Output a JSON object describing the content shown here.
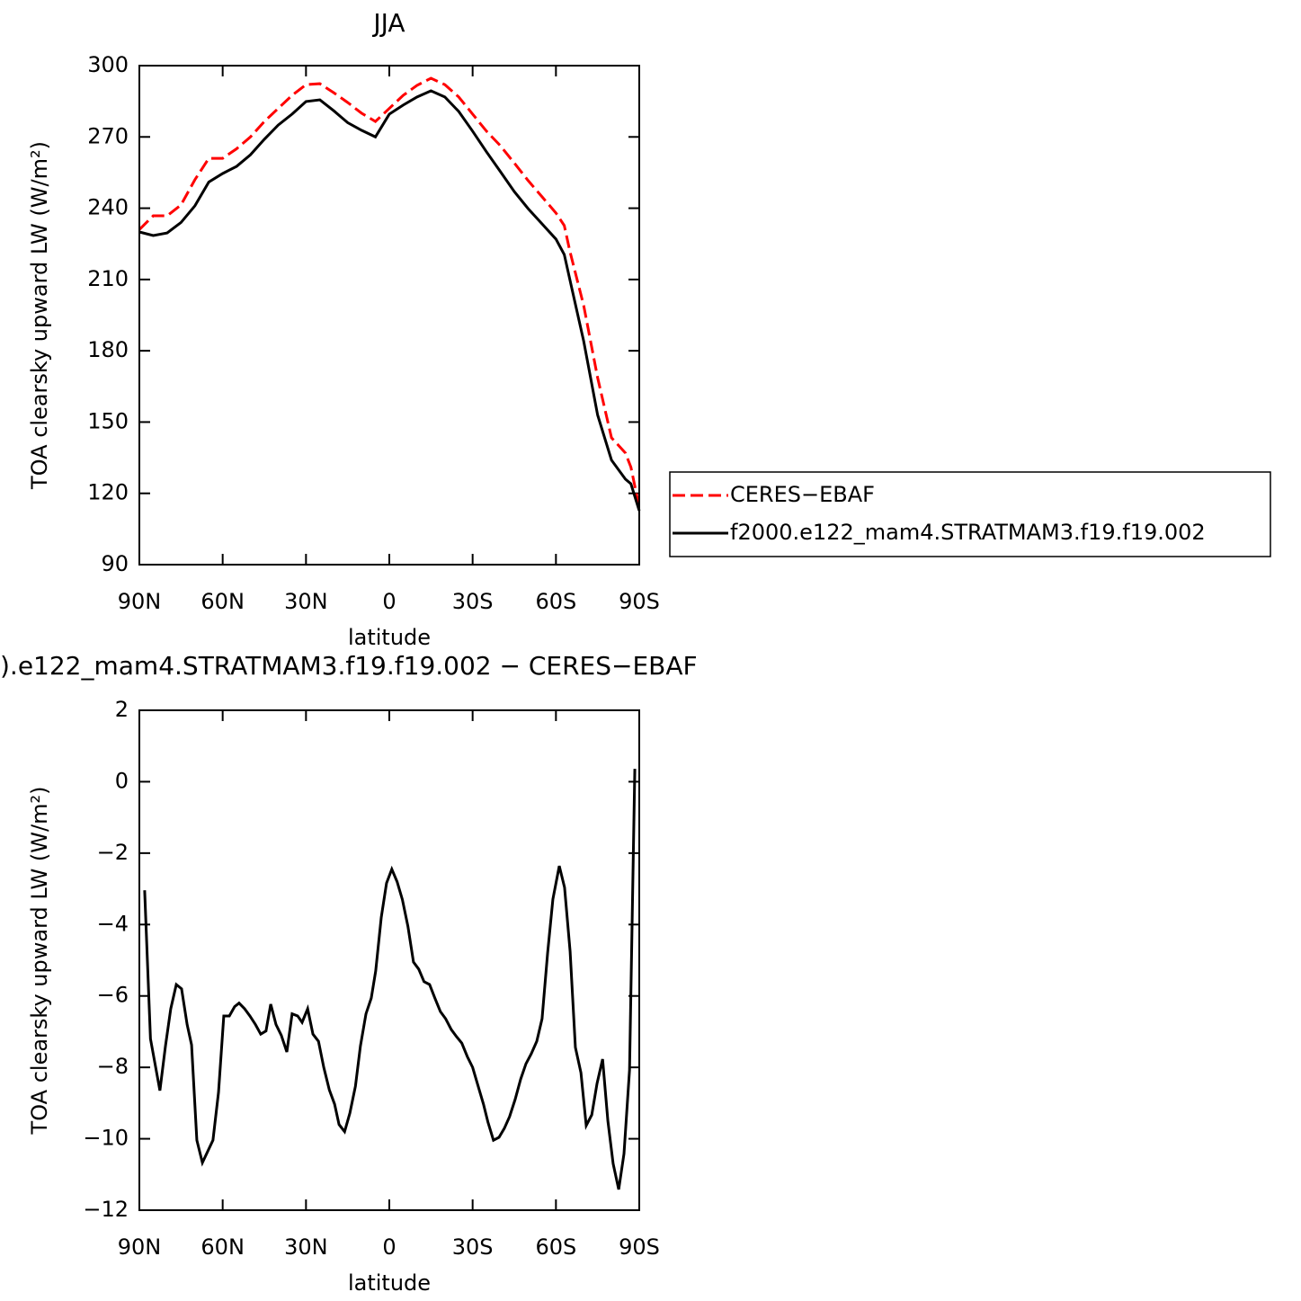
{
  "chart_data": [
    {
      "type": "line",
      "title": "JJA",
      "xlabel": "latitude",
      "ylabel": "TOA clearsky upward LW (W/m²)",
      "x": [
        90,
        85,
        80,
        75,
        70,
        65,
        60,
        55,
        50,
        45,
        40,
        35,
        30,
        25,
        20,
        15,
        10,
        5,
        0,
        -5,
        -10,
        -15,
        -20,
        -25,
        -30,
        -35,
        -40,
        -45,
        -50,
        -55,
        -60,
        -63,
        -65,
        -70,
        -75,
        -80,
        -85,
        -87,
        -90
      ],
      "series": [
        {
          "name": "CERES−EBAF",
          "color": "#ff0000",
          "dash": true,
          "values": [
            231,
            236.8,
            236.8,
            241.4,
            252,
            261,
            261,
            265,
            270,
            276.5,
            282,
            287.5,
            292,
            292.4,
            288.6,
            284.5,
            280,
            276.5,
            282,
            287.5,
            291.7,
            294.7,
            292,
            286.8,
            279.6,
            272.4,
            266.3,
            259,
            251.6,
            244.8,
            238,
            232.7,
            222,
            199,
            168.7,
            143.4,
            137,
            131,
            114
          ]
        },
        {
          "name": "f2000.e122_mam4.STRATMAM3.f19.f19.002",
          "color": "#000000",
          "dash": false,
          "values": [
            230,
            228.5,
            229.6,
            234,
            241,
            251,
            254.6,
            257.6,
            262.5,
            269,
            275,
            279.6,
            284.9,
            285.6,
            281,
            276,
            272.8,
            270,
            279.6,
            283.4,
            286.8,
            289.4,
            286.8,
            280.7,
            272.4,
            263.7,
            255.4,
            247,
            239.8,
            233.4,
            227,
            220.5,
            210,
            184,
            153,
            134,
            126,
            124,
            112.7
          ]
        }
      ],
      "xlim": [
        90,
        -90
      ],
      "xticks": [
        {
          "value": 90,
          "label": "90N"
        },
        {
          "value": 60,
          "label": "60N"
        },
        {
          "value": 30,
          "label": "30N"
        },
        0,
        {
          "value": -30,
          "label": "30S"
        },
        {
          "value": -60,
          "label": "60S"
        },
        {
          "value": -90,
          "label": "90S"
        }
      ],
      "ylim": [
        90,
        300
      ],
      "yticks": [
        90,
        120,
        150,
        180,
        210,
        240,
        270,
        300
      ]
    },
    {
      "type": "line",
      "title": ").e122_mam4.STRATMAM3.f19.f19.002 − CERES−EBAF",
      "xlabel": "latitude",
      "ylabel": "TOA clearsky upward LW (W/m²)",
      "x": [
        88.1,
        86,
        82.6,
        80.6,
        78.7,
        76.7,
        74.8,
        72.8,
        71.2,
        69.3,
        67.3,
        63.5,
        61.5,
        59.6,
        57.6,
        55.7,
        54.1,
        52.1,
        50.2,
        48.2,
        46.3,
        44.4,
        42.7,
        40.8,
        38.9,
        36.9,
        35,
        33,
        31.4,
        29.4,
        27.5,
        25.5,
        23.6,
        21.6,
        19.7,
        18.1,
        16.1,
        14.2,
        12.2,
        10.4,
        8.4,
        6.5,
        4.9,
        2.9,
        1,
        -0.9,
        -2.8,
        -4.7,
        -6.7,
        -8.7,
        -10.6,
        -12.5,
        -14.5,
        -16.4,
        -18.4,
        -20.3,
        -22.3,
        -24.2,
        -26.1,
        -28.1,
        -30,
        -32,
        -33.9,
        -35.5,
        -37.5,
        -39.5,
        -41.4,
        -43.3,
        -45.3,
        -47.3,
        -49.2,
        -51.1,
        -53.1,
        -55,
        -57,
        -58.9,
        -61.2,
        -63.1,
        -65.1,
        -67,
        -69,
        -70.9,
        -72.9,
        -74.8,
        -76.8,
        -78.7,
        -80.6,
        -82.6,
        -84.5,
        -86.5,
        -88.4
      ],
      "values": [
        -3.04,
        -7.2,
        -8.65,
        -7.4,
        -6.36,
        -5.68,
        -5.8,
        -6.8,
        -7.37,
        -10.04,
        -10.67,
        -10.04,
        -8.7,
        -6.56,
        -6.56,
        -6.3,
        -6.2,
        -6.36,
        -6.56,
        -6.8,
        -7.07,
        -6.98,
        -6.23,
        -6.8,
        -7.1,
        -7.57,
        -6.5,
        -6.56,
        -6.74,
        -6.36,
        -7.07,
        -7.27,
        -8.0,
        -8.63,
        -9.03,
        -9.6,
        -9.8,
        -9.28,
        -8.53,
        -7.4,
        -6.5,
        -6.06,
        -5.3,
        -3.8,
        -2.84,
        -2.45,
        -2.8,
        -3.3,
        -4.05,
        -5.05,
        -5.25,
        -5.6,
        -5.68,
        -6.06,
        -6.44,
        -6.64,
        -6.94,
        -7.14,
        -7.32,
        -7.7,
        -8.0,
        -8.53,
        -9.03,
        -9.53,
        -10.04,
        -9.96,
        -9.71,
        -9.38,
        -8.9,
        -8.33,
        -7.9,
        -7.62,
        -7.27,
        -6.64,
        -4.8,
        -3.29,
        -2.36,
        -2.96,
        -4.75,
        -7.44,
        -8.15,
        -9.63,
        -9.33,
        -8.45,
        -7.77,
        -9.5,
        -10.7,
        -11.42,
        -10.42,
        -8.07,
        0.36
      ],
      "color": "#000000",
      "xlim": [
        90,
        -90
      ],
      "xticks": [
        {
          "value": 90,
          "label": "90N"
        },
        {
          "value": 60,
          "label": "60N"
        },
        {
          "value": 30,
          "label": "30N"
        },
        0,
        {
          "value": -30,
          "label": "30S"
        },
        {
          "value": -60,
          "label": "60S"
        },
        {
          "value": -90,
          "label": "90S"
        }
      ],
      "ylim": [
        -12,
        2
      ],
      "yticks": [
        {
          "value": -12,
          "label": "−12"
        },
        {
          "value": -10,
          "label": "−10"
        },
        {
          "value": -8,
          "label": "−8"
        },
        {
          "value": -6,
          "label": "−6"
        },
        {
          "value": -4,
          "label": "−4"
        },
        {
          "value": -2,
          "label": "−2"
        },
        0,
        2
      ]
    }
  ]
}
